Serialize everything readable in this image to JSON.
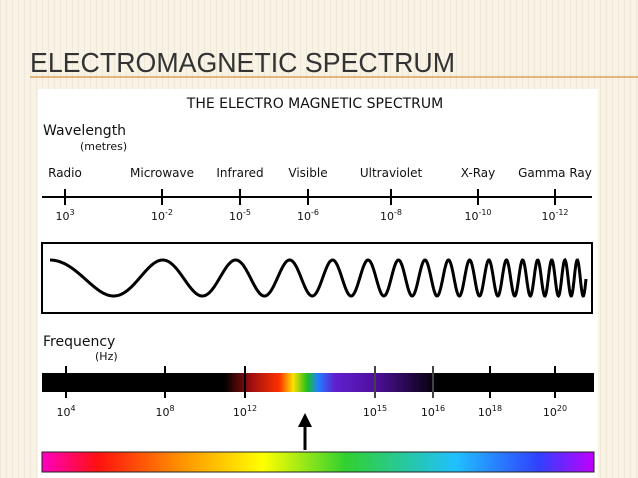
{
  "header": {
    "title": "ELECTROMAGNETIC SPECTRUM"
  },
  "diagram": {
    "title": "THE ELECTRO MAGNETIC SPECTRUM",
    "wavelength": {
      "label": "Wavelength",
      "unit": "(metres)",
      "bands": [
        "Radio",
        "Microwave",
        "Infrared",
        "Visible",
        "Ultraviolet",
        "X-Ray",
        "Gamma Ray"
      ],
      "ticks": [
        {
          "base": "10",
          "exp": "3"
        },
        {
          "base": "10",
          "exp": "-2"
        },
        {
          "base": "10",
          "exp": "-5"
        },
        {
          "base": "10",
          "exp": "-6"
        },
        {
          "base": "10",
          "exp": "-8"
        },
        {
          "base": "10",
          "exp": "-10"
        },
        {
          "base": "10",
          "exp": "-12"
        }
      ]
    },
    "frequency": {
      "label": "Frequency",
      "unit": "(Hz)",
      "ticks": [
        {
          "base": "10",
          "exp": "4"
        },
        {
          "base": "10",
          "exp": "8"
        },
        {
          "base": "10",
          "exp": "12"
        },
        {
          "base": "10",
          "exp": "15"
        },
        {
          "base": "10",
          "exp": "16"
        },
        {
          "base": "10",
          "exp": "18"
        },
        {
          "base": "10",
          "exp": "20"
        }
      ]
    }
  }
}
